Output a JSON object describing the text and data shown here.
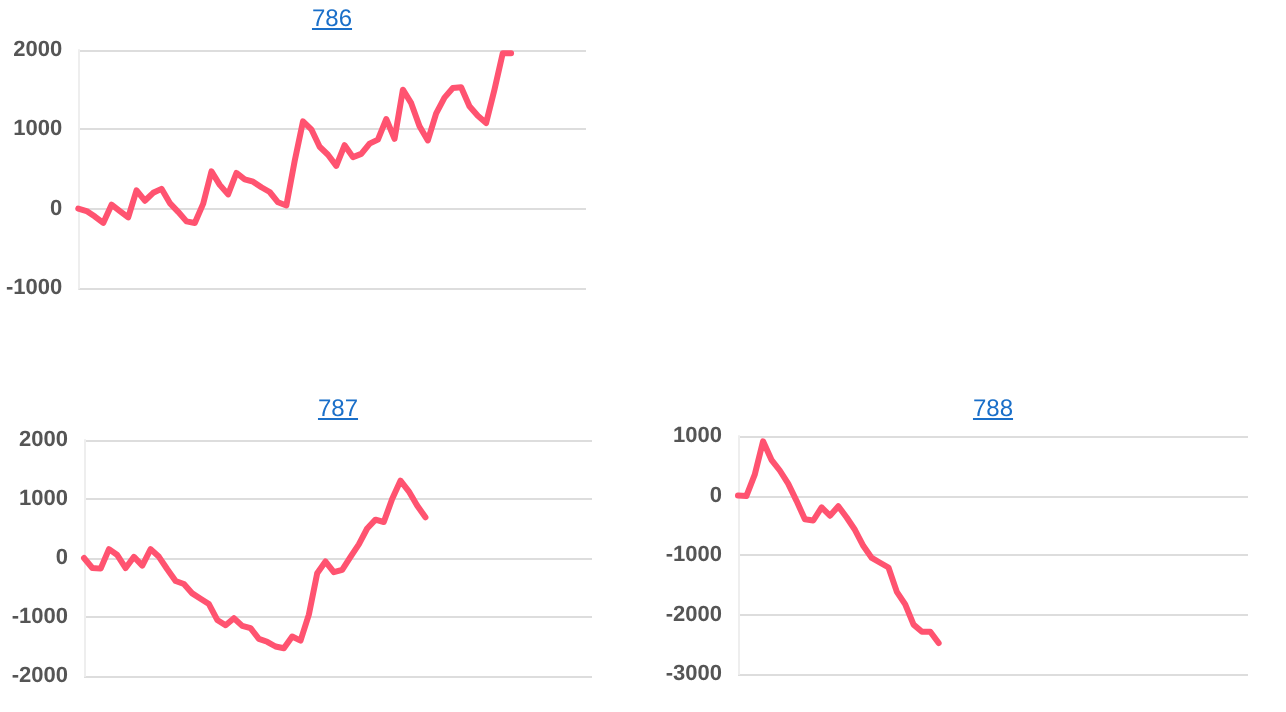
{
  "chart_data": [
    {
      "type": "line",
      "title": "786",
      "categories": [
        null,
        null,
        null,
        null,
        null,
        null,
        null,
        null,
        null,
        null,
        null,
        null,
        null,
        null,
        null,
        null,
        null,
        null,
        null,
        null,
        null,
        null,
        null,
        null,
        null,
        null,
        null,
        null,
        null,
        null,
        null,
        null,
        null,
        null,
        null,
        null,
        null,
        null,
        null,
        null,
        null,
        null,
        null,
        null,
        null,
        null,
        null,
        null,
        null,
        null,
        null,
        null,
        null,
        null,
        null,
        null,
        null,
        null,
        null,
        null,
        null,
        null
      ],
      "series": [
        {
          "color": "#ff5370",
          "values": [
            0,
            -30,
            -100,
            -180,
            50,
            -30,
            -110,
            230,
            100,
            200,
            250,
            70,
            -40,
            -160,
            -180,
            60,
            470,
            300,
            180,
            450,
            370,
            340,
            270,
            210,
            80,
            40,
            600,
            1100,
            1000,
            780,
            680,
            540,
            800,
            650,
            690,
            820,
            870,
            1130,
            880,
            1500,
            1330,
            1040,
            860,
            1200,
            1400,
            1520,
            1530,
            1290,
            1170,
            1080,
            1500,
            1960,
            1960,
            null,
            null,
            null,
            null,
            null,
            null,
            null,
            null,
            null
          ]
        }
      ],
      "ylim": [
        -1000,
        2000
      ],
      "yticks": [
        -1000,
        0,
        1000,
        2000
      ],
      "grid": "y",
      "tick_labels": "y",
      "line_style": "solid"
    },
    {
      "type": "line",
      "title": "787",
      "categories": [
        null,
        null,
        null,
        null,
        null,
        null,
        null,
        null,
        null,
        null,
        null,
        null,
        null,
        null,
        null,
        null,
        null,
        null,
        null,
        null,
        null,
        null,
        null,
        null,
        null,
        null,
        null,
        null,
        null,
        null,
        null,
        null,
        null,
        null,
        null,
        null,
        null,
        null,
        null,
        null,
        null,
        null,
        null,
        null,
        null,
        null,
        null,
        null,
        null,
        null,
        null,
        null,
        null,
        null,
        null,
        null,
        null,
        null,
        null,
        null,
        null,
        null
      ],
      "series": [
        {
          "color": "#ff5370",
          "values": [
            0,
            -170,
            -180,
            150,
            50,
            -170,
            20,
            -130,
            150,
            20,
            -190,
            -390,
            -440,
            -600,
            -690,
            -780,
            -1050,
            -1140,
            -1020,
            -1150,
            -1190,
            -1370,
            -1420,
            -1500,
            -1530,
            -1330,
            -1400,
            -960,
            -260,
            -60,
            -240,
            -200,
            20,
            230,
            500,
            650,
            610,
            1000,
            1310,
            1130,
            890,
            690,
            null,
            null,
            null,
            null,
            null,
            null,
            null,
            null,
            null,
            null,
            null,
            null,
            null,
            null,
            null,
            null,
            null,
            null,
            null,
            null
          ]
        }
      ],
      "ylim": [
        -2000,
        2000
      ],
      "yticks": [
        -2000,
        -1000,
        0,
        1000,
        2000
      ],
      "grid": "y",
      "tick_labels": "y",
      "line_style": "solid"
    },
    {
      "type": "line",
      "title": "788",
      "categories": [
        null,
        null,
        null,
        null,
        null,
        null,
        null,
        null,
        null,
        null,
        null,
        null,
        null,
        null,
        null,
        null,
        null,
        null,
        null,
        null,
        null,
        null,
        null,
        null,
        null,
        null,
        null,
        null,
        null,
        null,
        null,
        null,
        null,
        null,
        null,
        null,
        null,
        null,
        null,
        null,
        null,
        null,
        null,
        null,
        null,
        null,
        null,
        null,
        null,
        null,
        null,
        null,
        null,
        null,
        null,
        null,
        null,
        null,
        null,
        null,
        null,
        null
      ],
      "series": [
        {
          "color": "#ff5370",
          "values": [
            0,
            -10,
            350,
            910,
            600,
            420,
            200,
            -90,
            -400,
            -420,
            -200,
            -340,
            -180,
            -370,
            -580,
            -850,
            -1050,
            -1130,
            -1210,
            -1620,
            -1830,
            -2170,
            -2290,
            -2290,
            -2480,
            null,
            null,
            null,
            null,
            null,
            null,
            null,
            null,
            null,
            null,
            null,
            null,
            null,
            null,
            null,
            null,
            null,
            null,
            null,
            null,
            null,
            null,
            null,
            null,
            null,
            null,
            null,
            null,
            null,
            null,
            null,
            null,
            null,
            null,
            null,
            null,
            null
          ]
        }
      ],
      "ylim": [
        -3000,
        1000
      ],
      "yticks": [
        -3000,
        -2000,
        -1000,
        0,
        1000
      ],
      "grid": "y",
      "tick_labels": "y",
      "line_style": "solid"
    }
  ]
}
